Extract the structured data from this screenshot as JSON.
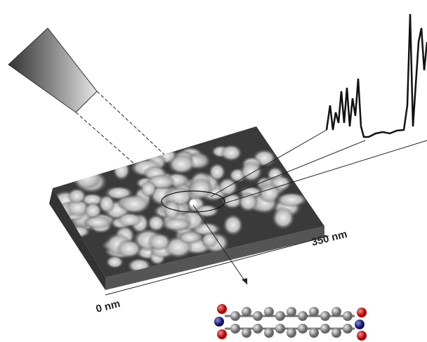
{
  "labels": {
    "scale_end": "350 nm",
    "scale_start": "0 nm"
  }
}
